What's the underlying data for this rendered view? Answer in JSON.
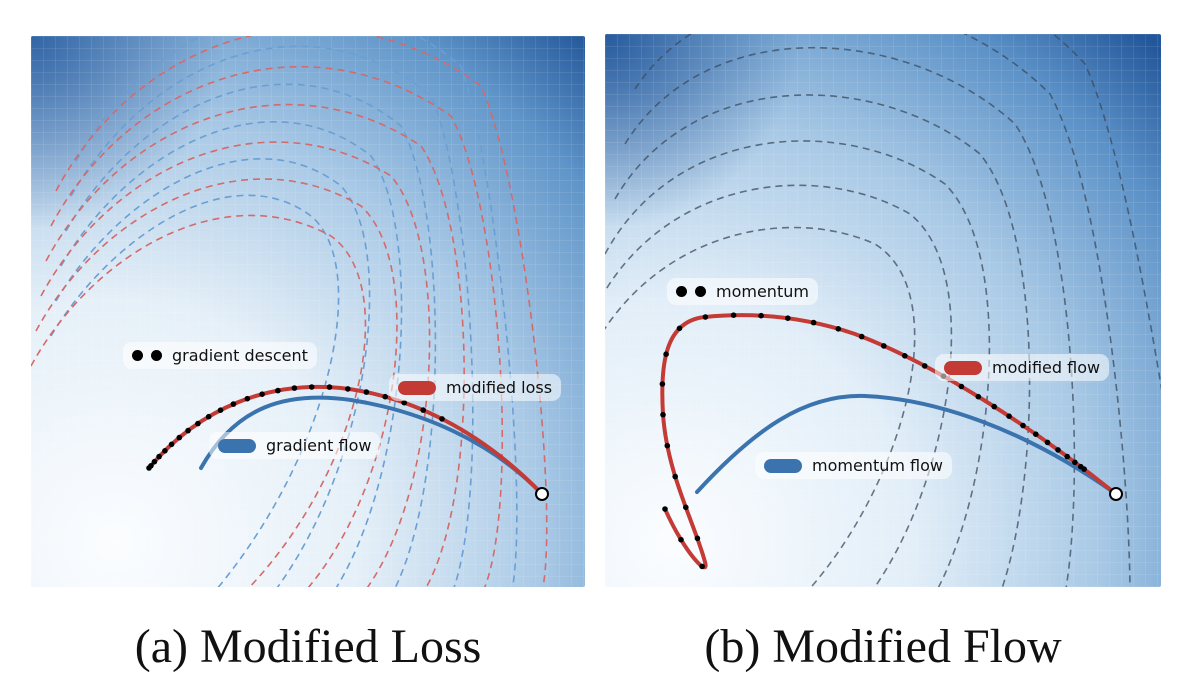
{
  "captions": {
    "a": "(a) Modified Loss",
    "b": "(b) Modified Flow"
  },
  "legend_a": {
    "discrete": "gradient descent",
    "modified": "modified loss",
    "flow": "gradient flow"
  },
  "legend_b": {
    "discrete": "momentum",
    "modified": "modified flow",
    "flow": "momentum flow"
  },
  "colors": {
    "red_curve": "#c43a35",
    "blue_curve": "#3a73ad",
    "contour_red": "#d46a6a",
    "contour_blue": "#6a9fd4",
    "contour_dark": "#3b4b5e",
    "bg_light": "#f6fafd",
    "bg_dark": "#1f5499"
  },
  "icons": {
    "start_point": "white-circle-marker",
    "discrete_steps": "black-dot-marker"
  }
}
